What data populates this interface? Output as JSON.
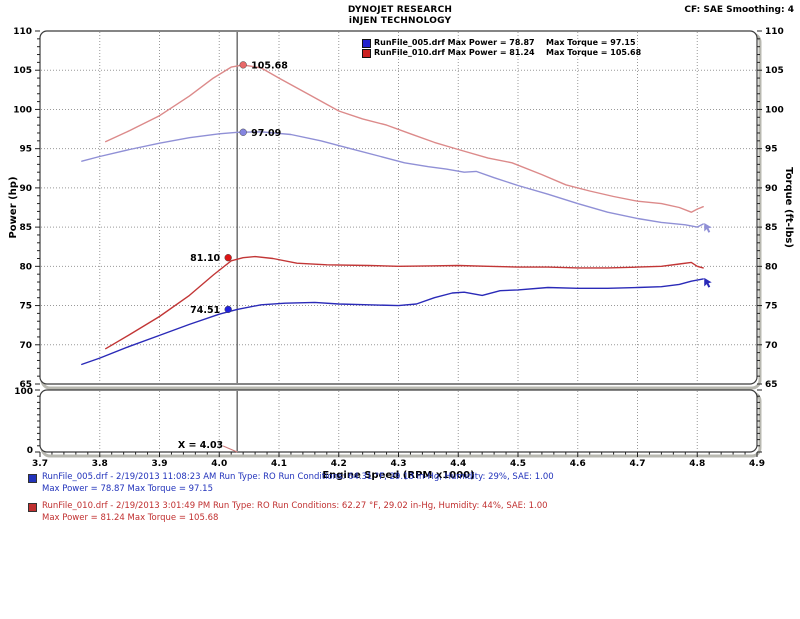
{
  "header": {
    "line1": "DYNOJET RESEARCH",
    "line2": "iNJEN TECHNOLOGY",
    "correction": "CF: SAE  Smoothing: 4"
  },
  "legend": {
    "entries": [
      {
        "label": "RunFile_005.drf Max Power = 78.87",
        "torque": "Max Torque = 97.15",
        "color": "#2222cc"
      },
      {
        "label": "RunFile_010.drf Max Power = 81.24",
        "torque": "Max Torque = 105.68",
        "color": "#cc2222"
      }
    ]
  },
  "chart_data": {
    "type": "line",
    "xlabel": "Engine Speed (RPM x1000)",
    "ylabel_left": "Power (hp)",
    "ylabel_right": "Torque (ft-lbs)",
    "xlim": [
      3.7,
      4.9
    ],
    "ylim": [
      65,
      110
    ],
    "x_ticks": [
      3.7,
      3.8,
      3.9,
      4.0,
      4.1,
      4.2,
      4.3,
      4.4,
      4.5,
      4.6,
      4.7,
      4.8,
      4.9
    ],
    "x_tick_labels": [
      "3.7",
      "3.8",
      "3.9",
      "4.0",
      "4.1",
      "4.2",
      "4.3",
      "4.4",
      "4.5",
      "4.6",
      "4.7",
      "4.8",
      "4.9"
    ],
    "y_ticks": [
      65,
      70,
      75,
      80,
      85,
      90,
      95,
      100,
      105,
      110
    ],
    "y_tick_labels": [
      "65",
      "70",
      "75",
      "80",
      "85",
      "90",
      "95",
      "100",
      "105",
      "110"
    ],
    "grid": true,
    "legend_position": "top",
    "colors": {
      "grid": "#999999",
      "border": "#3c3c3c",
      "shadow": "#b8b8b0",
      "cursor": "#5a5a5a",
      "leader": "#cc7777"
    },
    "sub_panel": {
      "ylim": [
        0,
        100
      ],
      "y_tick_labels": [
        "100",
        "0"
      ]
    },
    "cursor": {
      "x": 4.03,
      "label": "X = 4.03",
      "readouts": [
        {
          "text": "105.68",
          "y": 105.68,
          "color": "#e86868",
          "side": "right"
        },
        {
          "text": "97.09",
          "y": 97.09,
          "color": "#8585e0",
          "side": "right"
        },
        {
          "text": "81.10",
          "y": 81.1,
          "color": "#dd1515",
          "side": "left"
        },
        {
          "text": "74.51",
          "y": 74.51,
          "color": "#2020dd",
          "side": "left"
        }
      ]
    },
    "series": [
      {
        "name": "RunFile_010 Torque",
        "color": "#dc8a8a",
        "axis": "torque",
        "end_arrow": false,
        "points": [
          [
            3.81,
            95.9
          ],
          [
            3.85,
            97.3
          ],
          [
            3.9,
            99.2
          ],
          [
            3.95,
            101.7
          ],
          [
            3.99,
            104.0
          ],
          [
            4.02,
            105.4
          ],
          [
            4.04,
            105.68
          ],
          [
            4.07,
            105.3
          ],
          [
            4.1,
            104.0
          ],
          [
            4.15,
            101.9
          ],
          [
            4.2,
            99.8
          ],
          [
            4.24,
            98.8
          ],
          [
            4.28,
            98.0
          ],
          [
            4.32,
            96.9
          ],
          [
            4.36,
            95.8
          ],
          [
            4.4,
            94.9
          ],
          [
            4.45,
            93.8
          ],
          [
            4.49,
            93.2
          ],
          [
            4.54,
            91.7
          ],
          [
            4.58,
            90.4
          ],
          [
            4.62,
            89.6
          ],
          [
            4.66,
            88.9
          ],
          [
            4.7,
            88.3
          ],
          [
            4.74,
            88.0
          ],
          [
            4.77,
            87.5
          ],
          [
            4.79,
            86.9
          ],
          [
            4.8,
            87.3
          ],
          [
            4.81,
            87.6
          ]
        ]
      },
      {
        "name": "RunFile_005 Torque",
        "color": "#9090d6",
        "axis": "torque",
        "end_arrow": true,
        "points": [
          [
            3.77,
            93.4
          ],
          [
            3.8,
            94.0
          ],
          [
            3.85,
            94.9
          ],
          [
            3.9,
            95.7
          ],
          [
            3.95,
            96.4
          ],
          [
            4.0,
            96.9
          ],
          [
            4.03,
            97.09
          ],
          [
            4.07,
            97.15
          ],
          [
            4.12,
            96.8
          ],
          [
            4.17,
            96.0
          ],
          [
            4.22,
            95.0
          ],
          [
            4.27,
            94.0
          ],
          [
            4.31,
            93.2
          ],
          [
            4.35,
            92.7
          ],
          [
            4.38,
            92.4
          ],
          [
            4.41,
            92.0
          ],
          [
            4.43,
            92.1
          ],
          [
            4.46,
            91.3
          ],
          [
            4.5,
            90.3
          ],
          [
            4.55,
            89.2
          ],
          [
            4.6,
            88.0
          ],
          [
            4.65,
            86.9
          ],
          [
            4.7,
            86.1
          ],
          [
            4.74,
            85.6
          ],
          [
            4.78,
            85.3
          ],
          [
            4.8,
            85.0
          ],
          [
            4.81,
            85.4
          ]
        ]
      },
      {
        "name": "RunFile_010 Power",
        "color": "#c23636",
        "axis": "power",
        "end_arrow": false,
        "points": [
          [
            3.81,
            69.5
          ],
          [
            3.85,
            71.3
          ],
          [
            3.9,
            73.6
          ],
          [
            3.95,
            76.3
          ],
          [
            3.99,
            78.9
          ],
          [
            4.02,
            80.7
          ],
          [
            4.04,
            81.1
          ],
          [
            4.06,
            81.24
          ],
          [
            4.09,
            81.0
          ],
          [
            4.13,
            80.4
          ],
          [
            4.18,
            80.2
          ],
          [
            4.25,
            80.1
          ],
          [
            4.3,
            80.0
          ],
          [
            4.35,
            80.05
          ],
          [
            4.4,
            80.1
          ],
          [
            4.45,
            80.0
          ],
          [
            4.5,
            79.9
          ],
          [
            4.55,
            79.9
          ],
          [
            4.6,
            79.8
          ],
          [
            4.65,
            79.8
          ],
          [
            4.7,
            79.9
          ],
          [
            4.74,
            80.0
          ],
          [
            4.77,
            80.3
          ],
          [
            4.79,
            80.5
          ],
          [
            4.8,
            80.0
          ],
          [
            4.81,
            79.8
          ]
        ]
      },
      {
        "name": "RunFile_005 Power",
        "color": "#2a2ab8",
        "axis": "power",
        "end_arrow": true,
        "points": [
          [
            3.77,
            67.5
          ],
          [
            3.8,
            68.3
          ],
          [
            3.85,
            69.8
          ],
          [
            3.9,
            71.2
          ],
          [
            3.95,
            72.6
          ],
          [
            4.0,
            73.9
          ],
          [
            4.03,
            74.51
          ],
          [
            4.07,
            75.1
          ],
          [
            4.11,
            75.3
          ],
          [
            4.16,
            75.4
          ],
          [
            4.2,
            75.2
          ],
          [
            4.25,
            75.1
          ],
          [
            4.3,
            75.0
          ],
          [
            4.33,
            75.2
          ],
          [
            4.36,
            76.0
          ],
          [
            4.39,
            76.6
          ],
          [
            4.41,
            76.7
          ],
          [
            4.44,
            76.3
          ],
          [
            4.47,
            76.9
          ],
          [
            4.5,
            77.0
          ],
          [
            4.55,
            77.3
          ],
          [
            4.6,
            77.2
          ],
          [
            4.65,
            77.2
          ],
          [
            4.7,
            77.3
          ],
          [
            4.74,
            77.4
          ],
          [
            4.77,
            77.7
          ],
          [
            4.79,
            78.1
          ],
          [
            4.81,
            78.4
          ]
        ]
      }
    ]
  },
  "footer": {
    "runs": [
      {
        "color": "#2233bb",
        "line1": "RunFile_005.drf - 2/19/2013 11:08:23 AM  Run Type: RO  Run Conditions: 64.31 °F, 29.13 in-Hg,  Humidity:  29%, SAE: 1.00",
        "line2": "Max Power = 78.87  Max Torque = 97.15"
      },
      {
        "color": "#c03030",
        "line1": "RunFile_010.drf - 2/19/2013 3:01:49 PM  Run Type: RO  Run Conditions: 62.27 °F, 29.02 in-Hg,  Humidity:  44%, SAE: 1.00",
        "line2": "Max Power = 81.24  Max Torque = 105.68"
      }
    ]
  }
}
